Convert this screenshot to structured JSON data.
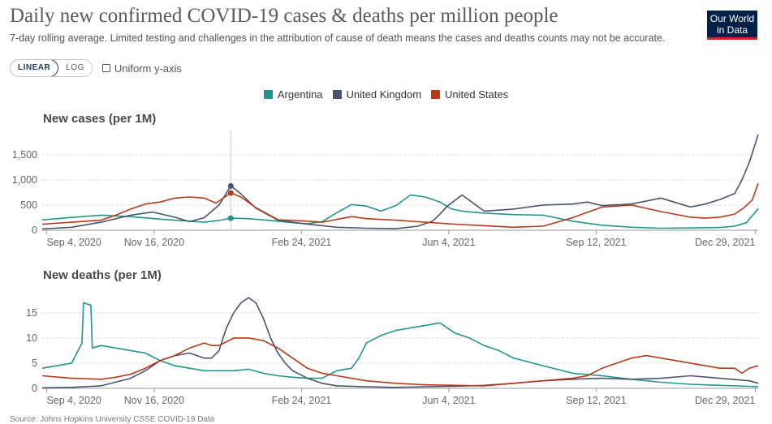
{
  "header": {
    "title": "Daily new confirmed COVID-19 cases & deaths per million people",
    "subtitle": "7-day rolling average. Limited testing and challenges in the attribution of cause of death means the cases and deaths counts may not be accurate.",
    "logo_line1": "Our World",
    "logo_line2": "in Data"
  },
  "controls": {
    "linear_label": "LINEAR",
    "log_label": "LOG",
    "active_scale": "linear",
    "uniform_label": "Uniform y-axis",
    "uniform_checked": false
  },
  "colors": {
    "Argentina": "#21958a",
    "United Kingdom": "#4a546c",
    "United States": "#b63a19"
  },
  "legend": [
    {
      "name": "Argentina",
      "color": "#21958a"
    },
    {
      "name": "United Kingdom",
      "color": "#4a546c"
    },
    {
      "name": "United States",
      "color": "#b63a19"
    }
  ],
  "chart_data": [
    {
      "type": "line",
      "title": "New cases (per 1M)",
      "xlabel": "",
      "ylabel": "",
      "x_ticks": [
        "Sep 4, 2020",
        "Nov 16, 2020",
        "Feb 24, 2021",
        "Jun 4, 2021",
        "Sep 12, 2021",
        "Dec 29, 2021"
      ],
      "y_ticks": [
        "0",
        "500",
        "1,000",
        "1,500"
      ],
      "ylim": [
        0,
        1900
      ],
      "xlim_days": [
        0,
        486
      ],
      "x_axis_start_date": "2020-09-01",
      "hover_date_day": 128,
      "series": [
        {
          "name": "Argentina",
          "days": [
            0,
            20,
            40,
            60,
            80,
            100,
            110,
            120,
            128,
            140,
            160,
            170,
            180,
            190,
            200,
            210,
            220,
            230,
            240,
            250,
            260,
            270,
            278,
            285,
            300,
            320,
            340,
            360,
            380,
            400,
            420,
            440,
            460,
            470,
            478,
            486
          ],
          "values": [
            205,
            255,
            300,
            270,
            220,
            180,
            160,
            195,
            240,
            230,
            180,
            150,
            130,
            170,
            350,
            510,
            480,
            380,
            490,
            700,
            660,
            560,
            420,
            380,
            340,
            310,
            300,
            180,
            100,
            60,
            40,
            45,
            55,
            80,
            150,
            430
          ]
        },
        {
          "name": "United Kingdom",
          "days": [
            0,
            20,
            40,
            60,
            75,
            90,
            100,
            110,
            120,
            128,
            135,
            145,
            160,
            170,
            180,
            200,
            220,
            240,
            255,
            265,
            270,
            275,
            285,
            300,
            320,
            340,
            360,
            370,
            380,
            400,
            420,
            440,
            450,
            460,
            470,
            475,
            480,
            486
          ],
          "values": [
            25,
            60,
            160,
            300,
            360,
            260,
            170,
            250,
            500,
            880,
            720,
            440,
            200,
            160,
            120,
            60,
            40,
            30,
            80,
            180,
            320,
            480,
            700,
            380,
            420,
            500,
            520,
            560,
            490,
            520,
            640,
            460,
            520,
            610,
            730,
            1000,
            1350,
            1900
          ]
        },
        {
          "name": "United States",
          "days": [
            0,
            20,
            40,
            50,
            60,
            70,
            80,
            90,
            100,
            110,
            118,
            128,
            135,
            145,
            160,
            180,
            190,
            210,
            220,
            240,
            260,
            280,
            300,
            320,
            340,
            360,
            380,
            400,
            420,
            440,
            450,
            460,
            470,
            476,
            482,
            486
          ],
          "values": [
            120,
            160,
            200,
            300,
            420,
            520,
            560,
            640,
            660,
            640,
            540,
            740,
            660,
            450,
            210,
            180,
            160,
            270,
            230,
            200,
            160,
            120,
            90,
            60,
            80,
            250,
            460,
            500,
            370,
            260,
            240,
            260,
            320,
            440,
            600,
            930
          ]
        }
      ]
    },
    {
      "type": "line",
      "title": "New deaths (per 1M)",
      "xlabel": "",
      "ylabel": "",
      "x_ticks": [
        "Sep 4, 2020",
        "Nov 16, 2020",
        "Feb 24, 2021",
        "Jun 4, 2021",
        "Sep 12, 2021",
        "Dec 29, 2021"
      ],
      "y_ticks": [
        "0",
        "5",
        "10",
        "15"
      ],
      "ylim": [
        0,
        19
      ],
      "xlim_days": [
        0,
        486
      ],
      "series": [
        {
          "name": "Argentina",
          "days": [
            0,
            10,
            20,
            27,
            28,
            33,
            34,
            40,
            50,
            60,
            70,
            80,
            90,
            100,
            110,
            120,
            130,
            140,
            150,
            160,
            170,
            180,
            190,
            200,
            210,
            215,
            220,
            230,
            240,
            250,
            260,
            270,
            280,
            290,
            300,
            310,
            320,
            340,
            360,
            380,
            400,
            420,
            440,
            460,
            480,
            486
          ],
          "values": [
            4,
            4.5,
            5,
            9,
            17,
            16.5,
            8,
            8.5,
            8,
            7.5,
            7,
            5.5,
            4.5,
            4,
            3.5,
            3.5,
            3.5,
            3.8,
            3,
            2.5,
            2.2,
            2,
            2,
            3.5,
            4,
            6,
            9,
            10.5,
            11.5,
            12,
            12.5,
            13,
            11,
            10,
            8.5,
            7.5,
            6,
            4.5,
            3,
            2.5,
            1.8,
            1.2,
            0.8,
            0.6,
            0.4,
            0.3
          ]
        },
        {
          "name": "United Kingdom",
          "days": [
            0,
            20,
            40,
            60,
            70,
            80,
            90,
            100,
            110,
            115,
            120,
            125,
            130,
            135,
            140,
            145,
            150,
            155,
            160,
            165,
            170,
            180,
            190,
            200,
            220,
            240,
            260,
            280,
            300,
            320,
            340,
            360,
            380,
            400,
            420,
            440,
            460,
            480,
            486
          ],
          "values": [
            0.1,
            0.2,
            0.5,
            2,
            3.5,
            5.5,
            6.5,
            7,
            6,
            6,
            7.5,
            12,
            15,
            17,
            18,
            17,
            14,
            10,
            7,
            5,
            3.5,
            2,
            1,
            0.5,
            0.3,
            0.2,
            0.3,
            0.4,
            0.6,
            1,
            1.5,
            1.8,
            2,
            1.8,
            2,
            2.5,
            2,
            1.5,
            1
          ]
        },
        {
          "name": "United States",
          "days": [
            0,
            20,
            40,
            50,
            60,
            70,
            80,
            90,
            100,
            110,
            115,
            120,
            130,
            140,
            150,
            160,
            170,
            180,
            190,
            200,
            220,
            240,
            260,
            280,
            300,
            320,
            340,
            360,
            370,
            380,
            390,
            400,
            410,
            420,
            440,
            450,
            460,
            470,
            475,
            480,
            486
          ],
          "values": [
            2.5,
            2,
            1.8,
            2.2,
            2.8,
            4,
            5.5,
            6.5,
            8,
            9,
            8.5,
            8.5,
            10,
            10,
            9.5,
            8,
            6,
            4,
            3,
            2.5,
            1.5,
            1,
            0.7,
            0.6,
            0.5,
            1,
            1.5,
            2,
            2.5,
            4,
            5,
            6,
            6.5,
            6,
            5,
            4.5,
            4,
            4,
            3,
            4,
            4.5
          ]
        }
      ]
    }
  ],
  "footer": {
    "source": "Source: Johns Hopkins University CSSE COVID-19 Data"
  }
}
